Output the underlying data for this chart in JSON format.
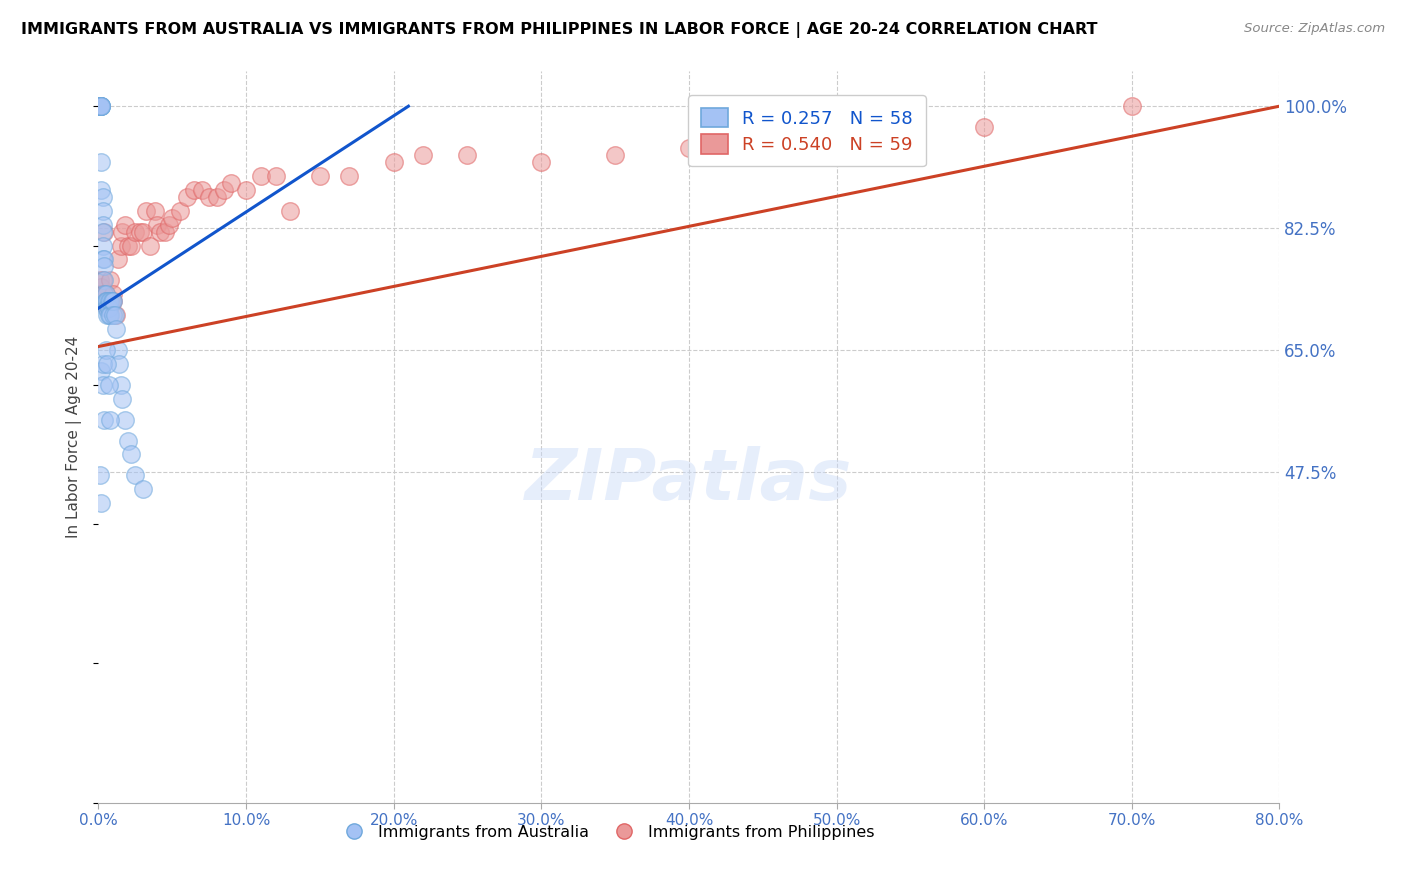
{
  "title": "IMMIGRANTS FROM AUSTRALIA VS IMMIGRANTS FROM PHILIPPINES IN LABOR FORCE | AGE 20-24 CORRELATION CHART",
  "source": "Source: ZipAtlas.com",
  "ylabel": "In Labor Force | Age 20-24",
  "xlim": [
    0.0,
    0.8
  ],
  "ylim": [
    0.0,
    1.05
  ],
  "x_tick_vals": [
    0.0,
    0.1,
    0.2,
    0.3,
    0.4,
    0.5,
    0.6,
    0.7,
    0.8
  ],
  "x_tick_labels": [
    "0.0%",
    "10.0%",
    "20.0%",
    "30.0%",
    "40.0%",
    "50.0%",
    "60.0%",
    "70.0%",
    "80.0%"
  ],
  "y_tick_vals": [
    1.0,
    0.825,
    0.65,
    0.475
  ],
  "y_tick_labels": [
    "100.0%",
    "82.5%",
    "65.0%",
    "47.5%"
  ],
  "legend_r_aus": "R = 0.257",
  "legend_n_aus": "N = 58",
  "legend_r_phi": "R = 0.540",
  "legend_n_phi": "N = 59",
  "legend_label_aus": "Immigrants from Australia",
  "legend_label_phi": "Immigrants from Philippines",
  "watermark": "ZIPatlas",
  "aus_color": "#a4c2f4",
  "aus_edge_color": "#6fa8dc",
  "phi_color": "#ea9999",
  "phi_edge_color": "#e06666",
  "aus_line_color": "#1155cc",
  "phi_line_color": "#cc4125",
  "background_color": "#ffffff",
  "grid_color": "#cccccc",
  "title_color": "#000000",
  "axis_tick_color": "#4472c4",
  "legend_color_aus": "#1155cc",
  "legend_color_phi": "#cc4125",
  "aus_scatter_x": [
    0.001,
    0.001,
    0.001,
    0.001,
    0.001,
    0.002,
    0.002,
    0.002,
    0.002,
    0.002,
    0.002,
    0.002,
    0.003,
    0.003,
    0.003,
    0.003,
    0.003,
    0.003,
    0.004,
    0.004,
    0.004,
    0.004,
    0.005,
    0.005,
    0.005,
    0.005,
    0.006,
    0.006,
    0.006,
    0.007,
    0.007,
    0.007,
    0.008,
    0.008,
    0.009,
    0.01,
    0.01,
    0.011,
    0.012,
    0.013,
    0.014,
    0.015,
    0.016,
    0.018,
    0.02,
    0.022,
    0.025,
    0.03,
    0.001,
    0.002,
    0.002,
    0.003,
    0.003,
    0.004,
    0.005,
    0.006,
    0.007,
    0.008
  ],
  "aus_scatter_y": [
    1.0,
    1.0,
    1.0,
    1.0,
    1.0,
    1.0,
    1.0,
    1.0,
    1.0,
    1.0,
    0.92,
    0.88,
    0.87,
    0.85,
    0.83,
    0.82,
    0.8,
    0.78,
    0.78,
    0.77,
    0.75,
    0.73,
    0.73,
    0.72,
    0.72,
    0.71,
    0.72,
    0.71,
    0.7,
    0.72,
    0.71,
    0.7,
    0.72,
    0.7,
    0.72,
    0.72,
    0.7,
    0.7,
    0.68,
    0.65,
    0.63,
    0.6,
    0.58,
    0.55,
    0.52,
    0.5,
    0.47,
    0.45,
    0.47,
    0.43,
    0.62,
    0.63,
    0.6,
    0.55,
    0.65,
    0.63,
    0.6,
    0.55
  ],
  "phi_scatter_x": [
    0.001,
    0.002,
    0.002,
    0.003,
    0.003,
    0.004,
    0.004,
    0.005,
    0.005,
    0.006,
    0.006,
    0.007,
    0.008,
    0.008,
    0.009,
    0.01,
    0.01,
    0.012,
    0.013,
    0.015,
    0.016,
    0.018,
    0.02,
    0.022,
    0.025,
    0.028,
    0.03,
    0.032,
    0.035,
    0.038,
    0.04,
    0.042,
    0.045,
    0.048,
    0.05,
    0.055,
    0.06,
    0.065,
    0.07,
    0.075,
    0.08,
    0.085,
    0.09,
    0.1,
    0.11,
    0.12,
    0.13,
    0.15,
    0.17,
    0.2,
    0.22,
    0.25,
    0.3,
    0.35,
    0.4,
    0.45,
    0.5,
    0.6,
    0.7
  ],
  "phi_scatter_y": [
    0.75,
    0.74,
    0.73,
    0.75,
    0.72,
    0.73,
    0.82,
    0.73,
    0.72,
    0.72,
    0.71,
    0.71,
    0.75,
    0.72,
    0.72,
    0.73,
    0.72,
    0.7,
    0.78,
    0.8,
    0.82,
    0.83,
    0.8,
    0.8,
    0.82,
    0.82,
    0.82,
    0.85,
    0.8,
    0.85,
    0.83,
    0.82,
    0.82,
    0.83,
    0.84,
    0.85,
    0.87,
    0.88,
    0.88,
    0.87,
    0.87,
    0.88,
    0.89,
    0.88,
    0.9,
    0.9,
    0.85,
    0.9,
    0.9,
    0.92,
    0.93,
    0.93,
    0.92,
    0.93,
    0.94,
    0.95,
    0.95,
    0.97,
    1.0
  ],
  "aus_trend_x": [
    0.0,
    0.21
  ],
  "aus_trend_y": [
    0.71,
    1.0
  ],
  "phi_trend_x": [
    0.0,
    0.8
  ],
  "phi_trend_y": [
    0.655,
    1.0
  ]
}
